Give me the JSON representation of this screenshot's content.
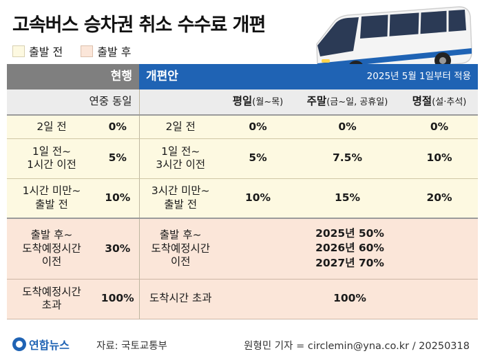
{
  "title": "고속버스 승차권 취소 수수료 개편",
  "legend": {
    "before": {
      "label": "출발 전",
      "color": "#fdf9e1"
    },
    "after": {
      "label": "출발 후",
      "color": "#fbe6d9"
    }
  },
  "header": {
    "current": "현행",
    "reform": "개편안",
    "effective": "2025년 5월 1일부터 적용"
  },
  "subheader": {
    "current": "연중 동일",
    "weekday": "평일",
    "weekday_detail": "(월~목)",
    "weekend": "주말",
    "weekend_detail": "(금~일, 공휴일)",
    "holiday": "명절",
    "holiday_detail": "(설·추석)"
  },
  "rows": [
    {
      "cur_label": "2일 전",
      "cur_rate": "0%",
      "new_label": "2일 전",
      "weekday": "0%",
      "weekend": "0%",
      "holiday": "0%"
    },
    {
      "cur_label_1": "1일 전~",
      "cur_label_2": "1시간 이전",
      "cur_rate": "5%",
      "new_label_1": "1일 전~",
      "new_label_2": "3시간 이전",
      "weekday": "5%",
      "weekend": "7.5%",
      "holiday": "10%"
    },
    {
      "cur_label_1": "1시간 미만~",
      "cur_label_2": "출발 전",
      "cur_rate": "10%",
      "new_label_1": "3시간 미만~",
      "new_label_2": "출발 전",
      "weekday": "10%",
      "weekend": "15%",
      "holiday": "20%"
    },
    {
      "cur_label_1": "출발 후~",
      "cur_label_2": "도착예정시간",
      "cur_label_3": "이전",
      "cur_rate": "30%",
      "new_label_1": "출발 후~",
      "new_label_2": "도착예정시간",
      "new_label_3": "이전",
      "phase_1": "2025년 50%",
      "phase_2": "2026년 60%",
      "phase_3": "2027년 70%"
    },
    {
      "cur_label_1": "도착예정시간",
      "cur_label_2": "초과",
      "cur_rate": "100%",
      "new_label": "도착시간 초과",
      "all": "100%"
    }
  ],
  "footer": {
    "brand": "연합뉴스",
    "source": "자료: 국토교통부",
    "credit": "원형민 기자 = circlemin@yna.co.kr / 20250318"
  },
  "icons": {
    "bus": "bus-illustration",
    "logo": "yonhap-logo-icon"
  }
}
